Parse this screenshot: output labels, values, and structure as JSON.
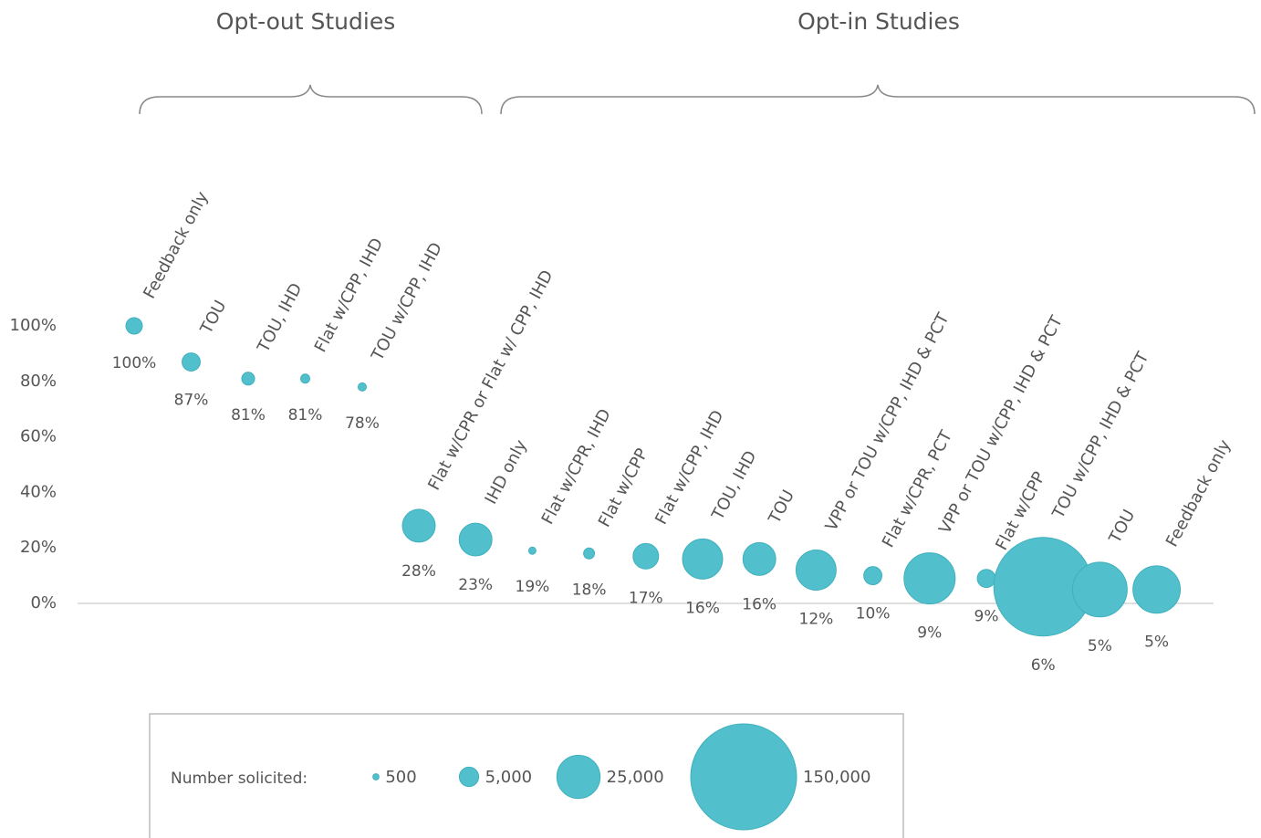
{
  "chart_data": {
    "type": "bubble",
    "groups": [
      "Opt-out Studies",
      "Opt-in Studies"
    ],
    "categories": [
      "Feedback only",
      "TOU",
      "TOU, IHD",
      "Flat w/CPP, IHD",
      "TOU w/CPP, IHD",
      "Flat w/CPR or Flat w/ CPP, IHD",
      "IHD only",
      "Flat w/CPR, IHD",
      "Flat w/CPP",
      "Flat w/CPP, IHD",
      "TOU, IHD",
      "TOU",
      "VPP or TOU w/CPP, IHD & PCT",
      "Flat w/CPR, PCT",
      "VPP or TOU w/CPP, IHD & PCT",
      "Flat w/CPP",
      "TOU w/CPP, IHD & PCT",
      "TOU",
      "Feedback only"
    ],
    "values": [
      100,
      87,
      81,
      81,
      78,
      28,
      23,
      19,
      18,
      17,
      16,
      16,
      12,
      10,
      9,
      9,
      6,
      5,
      5
    ],
    "value_labels": [
      "100%",
      "87%",
      "81%",
      "81%",
      "78%",
      "28%",
      "23%",
      "19%",
      "18%",
      "17%",
      "16%",
      "16%",
      "12%",
      "10%",
      "9%",
      "9%",
      "6%",
      "5%",
      "5%"
    ],
    "sizes": [
      3600,
      4400,
      2200,
      1100,
      900,
      14400,
      14400,
      700,
      1600,
      8700,
      21500,
      14400,
      21500,
      4400,
      35000,
      4400,
      130000,
      40000,
      30000
    ],
    "color": "#52c0cc",
    "ylim": [
      0,
      100
    ],
    "yticks": [
      {
        "value": 0,
        "label": "0%"
      },
      {
        "value": 20,
        "label": "20%"
      },
      {
        "value": 40,
        "label": "40%"
      },
      {
        "value": 60,
        "label": "60%"
      },
      {
        "value": 80,
        "label": "80%"
      },
      {
        "value": 100,
        "label": "100%"
      }
    ],
    "size_legend": {
      "title": "Number solicited:",
      "ticks": [
        {
          "value": 500,
          "label": "500"
        },
        {
          "value": 5000,
          "label": "5,000"
        },
        {
          "value": 25000,
          "label": "25,000"
        },
        {
          "value": 150000,
          "label": "150,000"
        }
      ]
    }
  }
}
